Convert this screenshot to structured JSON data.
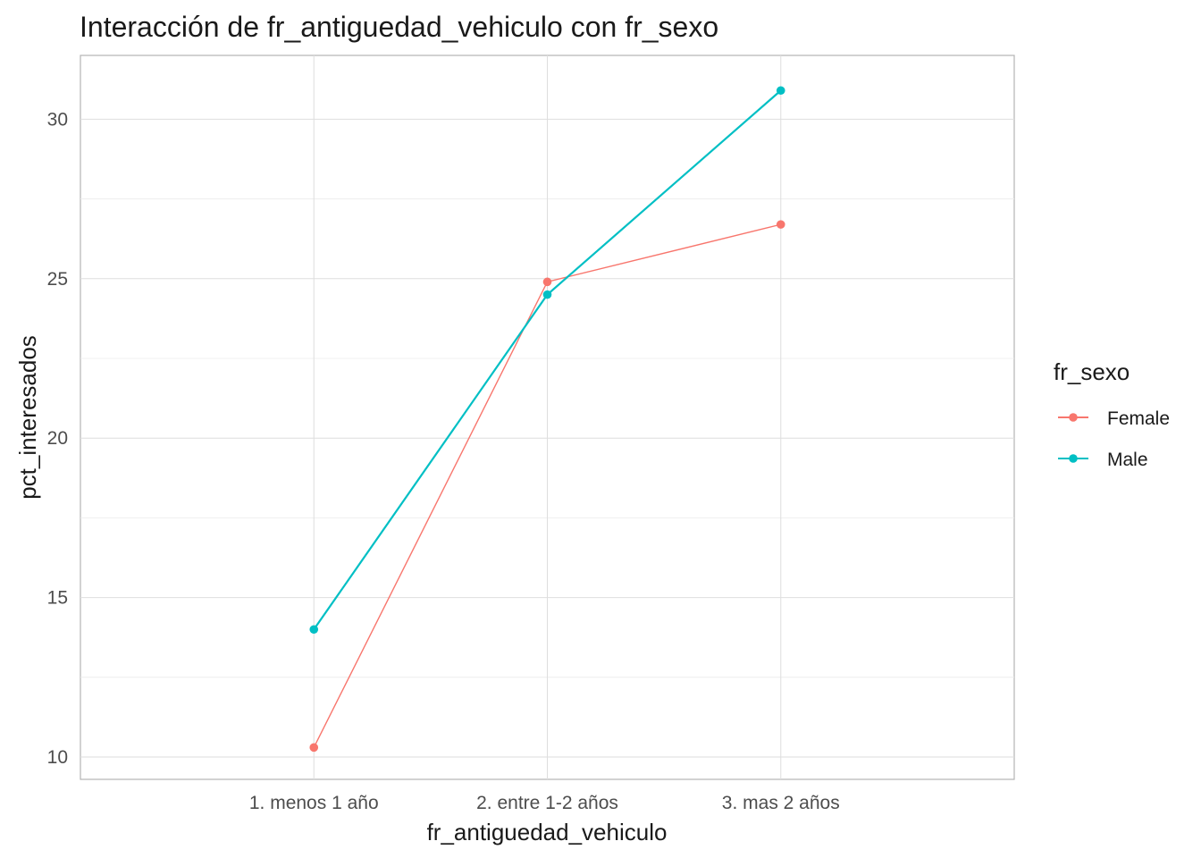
{
  "chart_data": {
    "type": "line",
    "title": "Interacción de fr_antiguedad_vehiculo con fr_sexo",
    "xlabel": "fr_antiguedad_vehiculo",
    "ylabel": "pct_interesados",
    "categories": [
      "1. menos 1 año",
      "2. entre 1-2 años",
      "3. mas 2 años"
    ],
    "ylim": [
      9.3,
      32.0
    ],
    "yticks": [
      10,
      15,
      20,
      25,
      30
    ],
    "ytick_labels": [
      "10",
      "15",
      "20",
      "25",
      "30"
    ],
    "grid": true,
    "legend": {
      "title": "fr_sexo",
      "position": "right"
    },
    "series": [
      {
        "name": "Female",
        "color": "#F8766D",
        "values": [
          10.3,
          24.9,
          26.7
        ]
      },
      {
        "name": "Male",
        "color": "#00BFC4",
        "values": [
          14.0,
          24.5,
          30.9
        ]
      }
    ]
  }
}
